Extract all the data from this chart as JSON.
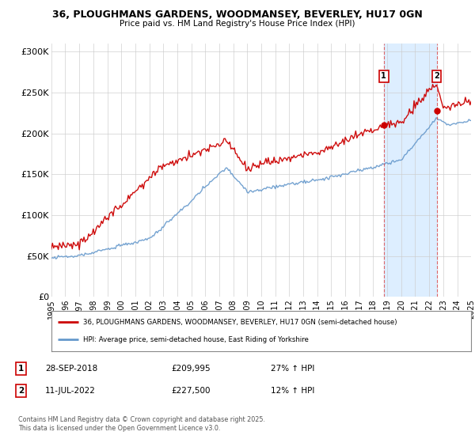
{
  "title1": "36, PLOUGHMANS GARDENS, WOODMANSEY, BEVERLEY, HU17 0GN",
  "title2": "Price paid vs. HM Land Registry's House Price Index (HPI)",
  "yticks": [
    0,
    50000,
    100000,
    150000,
    200000,
    250000,
    300000
  ],
  "ytick_labels": [
    "£0",
    "£50K",
    "£100K",
    "£150K",
    "£200K",
    "£250K",
    "£300K"
  ],
  "xmin_year": 1995,
  "xmax_year": 2025,
  "xtick_years": [
    1995,
    1996,
    1997,
    1998,
    1999,
    2000,
    2001,
    2002,
    2003,
    2004,
    2005,
    2006,
    2007,
    2008,
    2009,
    2010,
    2011,
    2012,
    2013,
    2014,
    2015,
    2016,
    2017,
    2018,
    2019,
    2020,
    2021,
    2022,
    2023,
    2024,
    2025
  ],
  "sale1_date": 2018.75,
  "sale1_price": 209995,
  "sale2_date": 2022.53,
  "sale2_price": 227500,
  "legend_line1": "36, PLOUGHMANS GARDENS, WOODMANSEY, BEVERLEY, HU17 0GN (semi-detached house)",
  "legend_line2": "HPI: Average price, semi-detached house, East Riding of Yorkshire",
  "footer": "Contains HM Land Registry data © Crown copyright and database right 2025.\nThis data is licensed under the Open Government Licence v3.0.",
  "red_color": "#cc0000",
  "blue_color": "#6699cc",
  "shade_color": "#ddeeff",
  "bg_color": "#ffffff",
  "grid_color": "#cccccc"
}
